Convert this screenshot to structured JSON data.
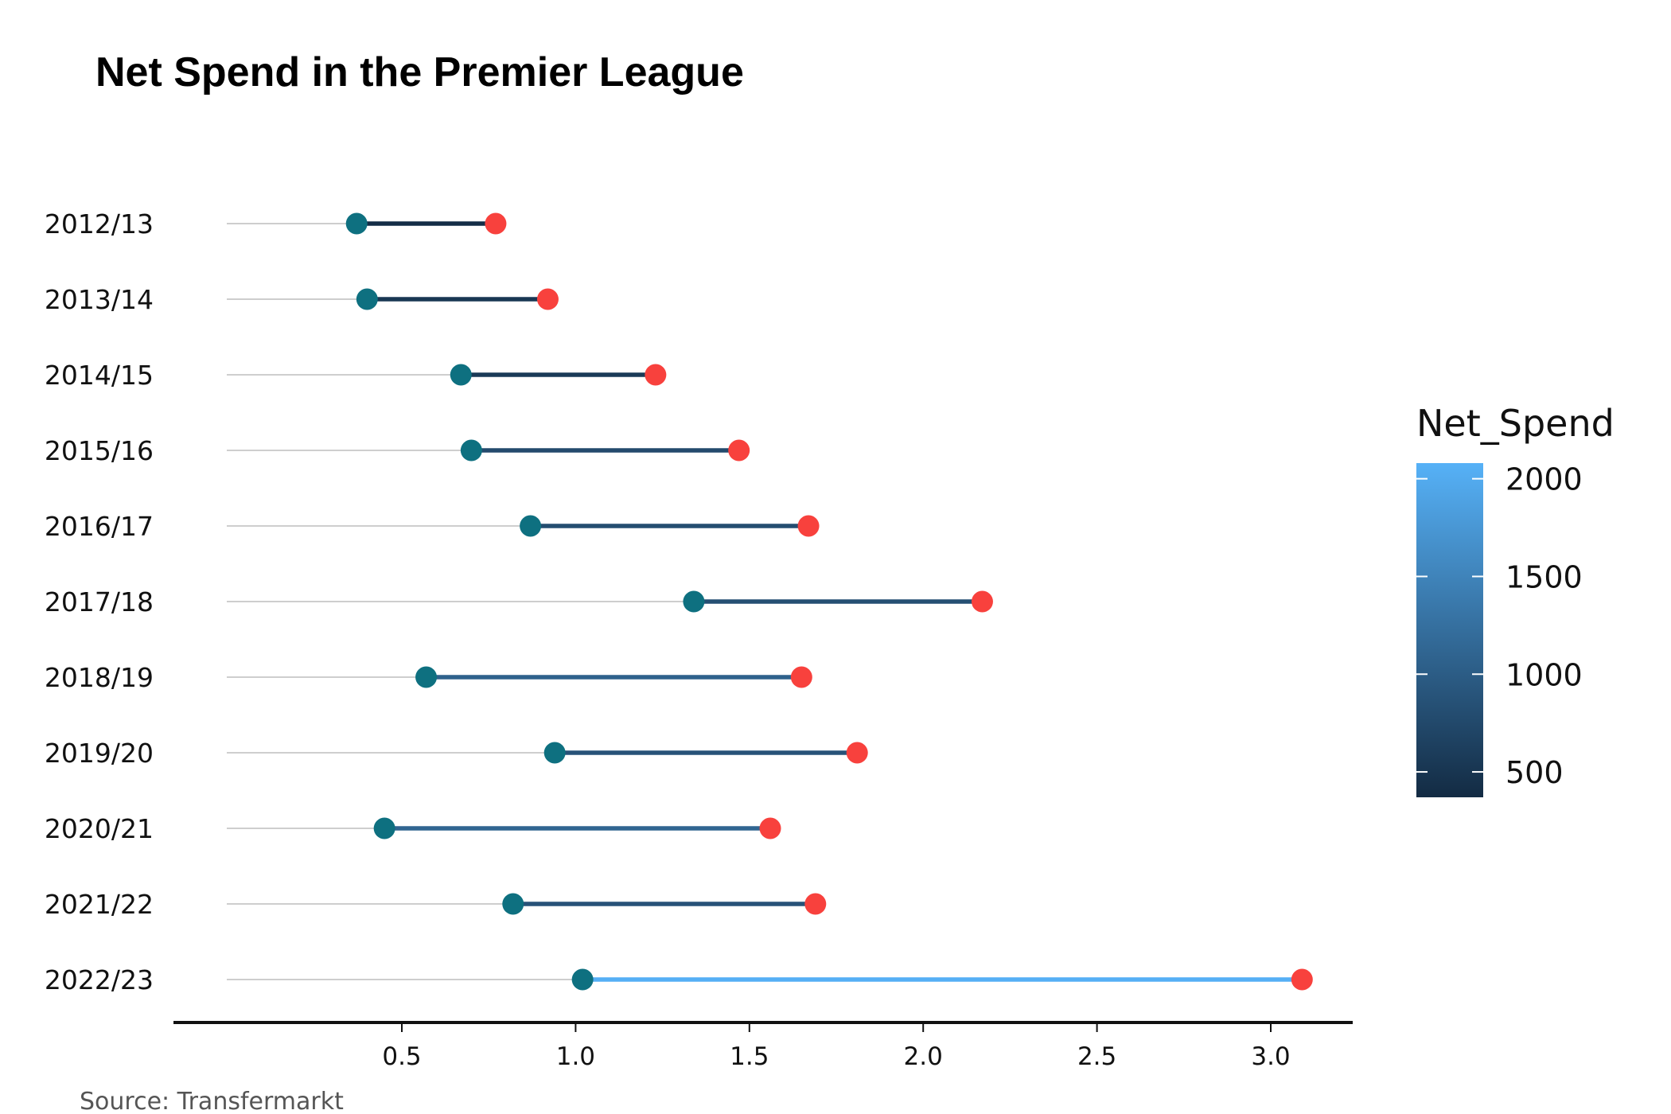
{
  "chart_data": {
    "type": "dumbbell",
    "title": "Net Spend in the Premier League",
    "caption": "Source: Transfermarkt",
    "categories": [
      "2012/13",
      "2013/14",
      "2014/15",
      "2015/16",
      "2016/17",
      "2017/18",
      "2018/19",
      "2019/20",
      "2020/21",
      "2021/22",
      "2022/23"
    ],
    "start_values": [
      0.37,
      0.4,
      0.67,
      0.7,
      0.87,
      1.34,
      0.57,
      0.94,
      0.45,
      0.82,
      1.02
    ],
    "end_values": [
      0.77,
      0.92,
      1.23,
      1.47,
      1.67,
      2.17,
      1.65,
      1.81,
      1.56,
      1.69,
      3.09
    ],
    "net_spend": [
      400,
      520,
      560,
      770,
      800,
      830,
      1060,
      870,
      1110,
      870,
      2060
    ],
    "x_ticks": [
      "0.5",
      "1.0",
      "1.5",
      "2.0",
      "2.5",
      "3.0"
    ],
    "x_tick_values": [
      0.5,
      1.0,
      1.5,
      2.0,
      2.5,
      3.0
    ],
    "xlim": [
      -0.15,
      3.25
    ],
    "legend": {
      "title": "Net_Spend",
      "labels": [
        "2000",
        "1500",
        "1000",
        "500"
      ],
      "label_values": [
        2000,
        1500,
        1000,
        500
      ],
      "range": [
        370,
        2080
      ],
      "low_color": "#132b43",
      "high_color": "#56b1f7"
    },
    "colors": {
      "start_point": "#0e7080",
      "end_point": "#f8413d",
      "guide_line": "#bdbdbd",
      "axis": "#111111"
    }
  }
}
